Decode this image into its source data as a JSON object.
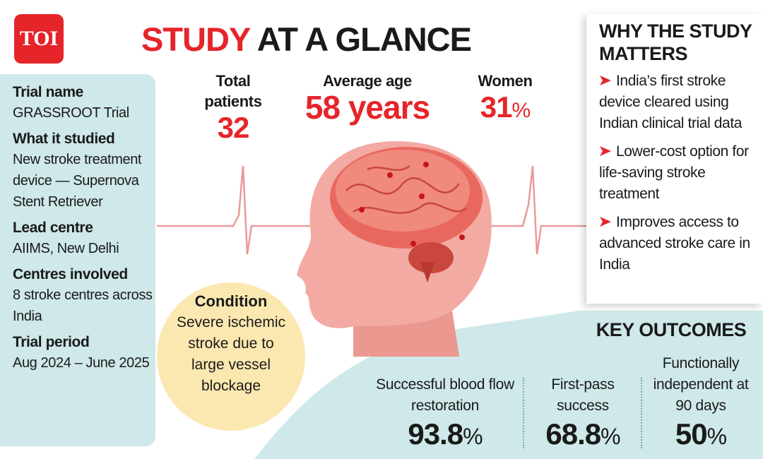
{
  "logo": "TOI",
  "title": {
    "highlight": "STUDY",
    "rest": "AT A GLANCE"
  },
  "details": [
    {
      "label": "Trial name",
      "value": "GRASSROOT Trial"
    },
    {
      "label": "What it studied",
      "value": "New stroke treatment device — Supernova Stent Retriever"
    },
    {
      "label": "Lead centre",
      "value": "AIIMS, New Delhi"
    },
    {
      "label": "Centres involved",
      "value": "8 stroke centres across India"
    },
    {
      "label": "Trial period",
      "value": "Aug 2024 – June 2025"
    }
  ],
  "stats": [
    {
      "label": "Total patients",
      "value": "32"
    },
    {
      "label": "Average age",
      "value": "58 years"
    },
    {
      "label": "Women",
      "value": "31",
      "unit": "%"
    }
  ],
  "condition": {
    "label": "Condition",
    "value": "Severe ischemic stroke due to large vessel blockage"
  },
  "why": {
    "title": "WHY THE STUDY MATTERS",
    "points": [
      "India’s first stroke device cleared using Indian clinical trial data",
      "Lower-cost option for life-saving stroke treatment",
      "Improves access to advanced stroke care in India"
    ]
  },
  "outcomes": {
    "title": "KEY OUTCOMES",
    "items": [
      {
        "label": "Successful blood flow restoration",
        "value": "93.8",
        "unit": "%"
      },
      {
        "label": "First-pass success",
        "value": "68.8",
        "unit": "%"
      },
      {
        "label": "Functionally independent at 90 days",
        "value": "50",
        "unit": "%"
      }
    ]
  }
}
